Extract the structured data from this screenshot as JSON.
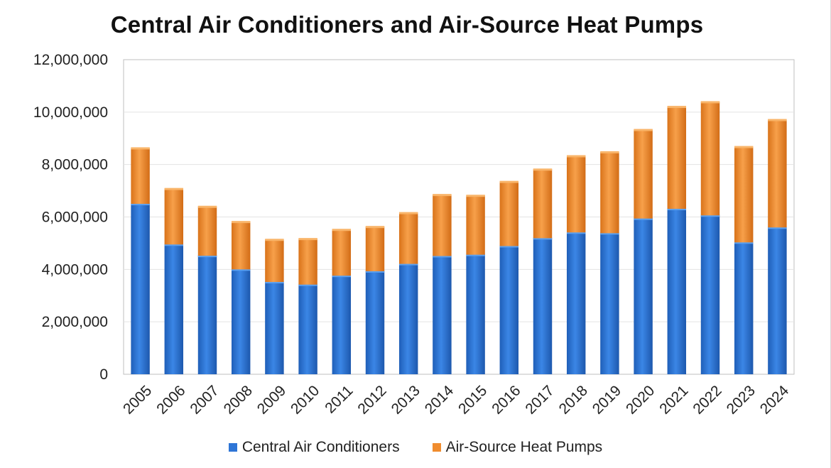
{
  "chart_data": {
    "type": "bar",
    "stacked": true,
    "title": "Central Air Conditioners and Air-Source Heat Pumps",
    "xlabel": "",
    "ylabel": "",
    "ylim": [
      0,
      12000000
    ],
    "yticks": [
      0,
      2000000,
      4000000,
      6000000,
      8000000,
      10000000,
      12000000
    ],
    "ytick_labels": [
      "0",
      "2,000,000",
      "4,000,000",
      "6,000,000",
      "8,000,000",
      "10,000,000",
      "12,000,000"
    ],
    "grid": true,
    "legend_position": "bottom",
    "categories": [
      "2005",
      "2006",
      "2007",
      "2008",
      "2009",
      "2010",
      "2011",
      "2012",
      "2013",
      "2014",
      "2015",
      "2016",
      "2017",
      "2018",
      "2019",
      "2020",
      "2021",
      "2022",
      "2023",
      "2024"
    ],
    "series": [
      {
        "name": "Central Air Conditioners",
        "color": "#2e75d6",
        "values": [
          6500000,
          4950000,
          4520000,
          4000000,
          3520000,
          3420000,
          3760000,
          3930000,
          4210000,
          4510000,
          4560000,
          4890000,
          5190000,
          5410000,
          5380000,
          5940000,
          6310000,
          6060000,
          5030000,
          5600000
        ]
      },
      {
        "name": "Air-Source Heat Pumps",
        "color": "#f08c2e",
        "values": [
          2130000,
          2130000,
          1880000,
          1820000,
          1620000,
          1750000,
          1760000,
          1700000,
          1950000,
          2340000,
          2260000,
          2460000,
          2630000,
          2920000,
          3100000,
          3390000,
          3900000,
          4330000,
          3650000,
          4110000
        ]
      }
    ]
  }
}
